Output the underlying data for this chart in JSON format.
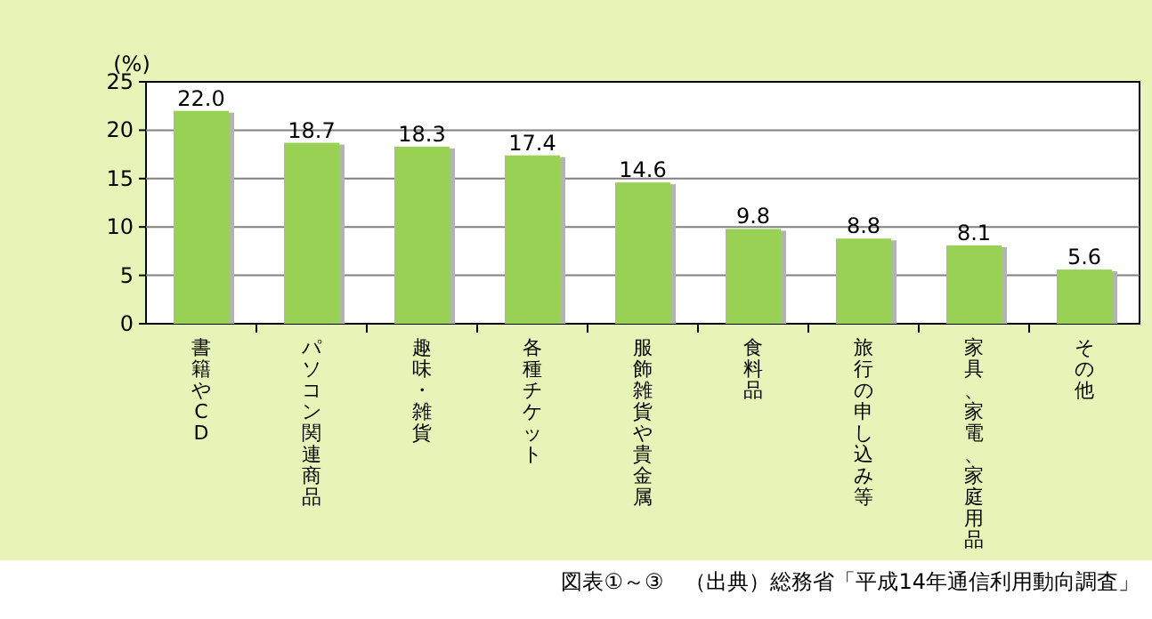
{
  "chart_data": {
    "type": "bar",
    "ylabel": "(%)",
    "categories": [
      "書籍やCD",
      "パソコン関連商品",
      "趣味・雑貨",
      "各種チケット",
      "服飾雑貨や貴金属",
      "食料品",
      "旅行の申し込み等",
      "家具、家電、家庭用品",
      "その他"
    ],
    "values": [
      22.0,
      18.7,
      18.3,
      17.4,
      14.6,
      9.8,
      8.8,
      8.1,
      5.6
    ],
    "color": "#99d155",
    "ylim": [
      0,
      25
    ],
    "yticks": [
      0,
      5,
      10,
      15,
      20,
      25
    ],
    "grid": "y",
    "value_labels": [
      "22.0",
      "18.7",
      "18.3",
      "17.4",
      "14.6",
      "9.8",
      "8.8",
      "8.1",
      "5.6"
    ],
    "annotations": [
      "図表①～③　（出典）総務省「平成14年通信利用動向調査」"
    ]
  }
}
